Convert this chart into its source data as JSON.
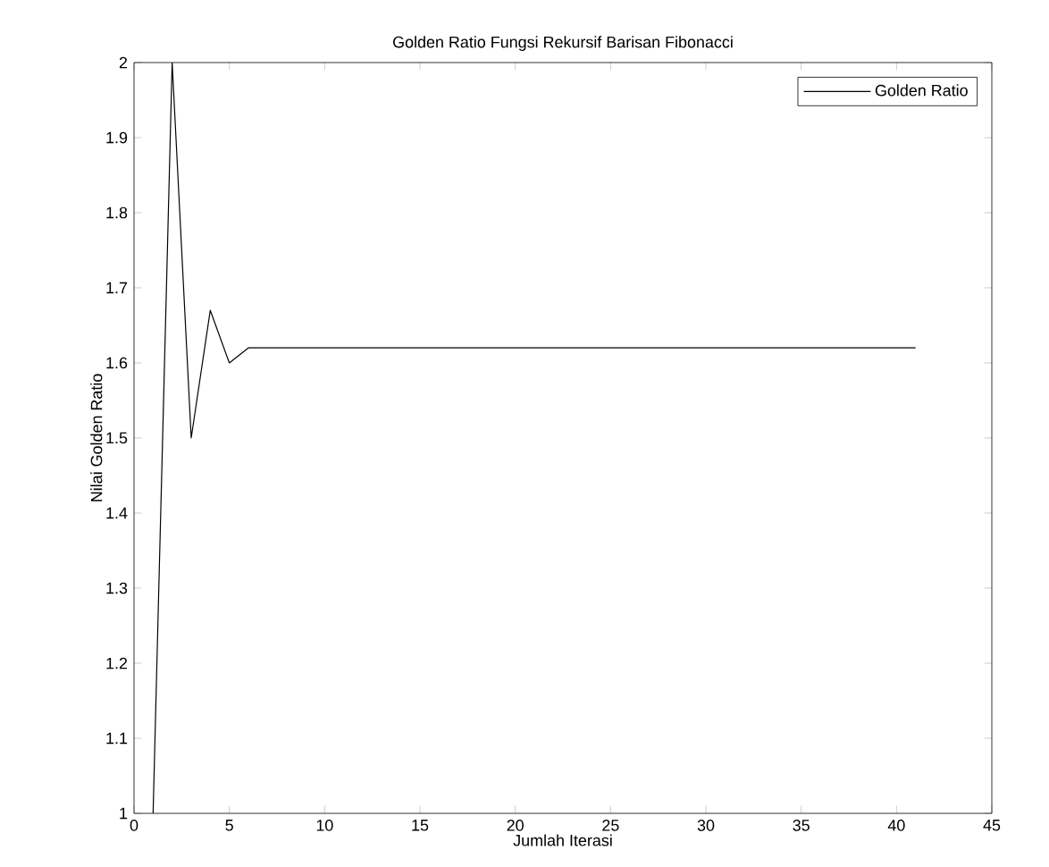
{
  "chart_data": {
    "type": "line",
    "title": "Golden Ratio Fungsi Rekursif Barisan Fibonacci",
    "xlabel": "Jumlah Iterasi",
    "ylabel": "Nilai Golden Ratio",
    "x": [
      1,
      2,
      3,
      4,
      5,
      6,
      7,
      8,
      41
    ],
    "series": [
      {
        "name": "Golden Ratio",
        "color": "#000000",
        "values": [
          1,
          2,
          1.5,
          1.67,
          1.6,
          1.62,
          1.62,
          1.62,
          1.62
        ]
      }
    ],
    "xlim": [
      0,
      45
    ],
    "xticks": [
      0,
      5,
      10,
      15,
      20,
      25,
      30,
      35,
      40,
      45
    ],
    "ylim": [
      1,
      2
    ],
    "yticks": [
      1,
      1.1,
      1.2,
      1.3,
      1.4,
      1.5,
      1.6,
      1.7,
      1.8,
      1.9,
      2
    ],
    "legend": "top right",
    "line_style": "solid",
    "marker": "none"
  }
}
